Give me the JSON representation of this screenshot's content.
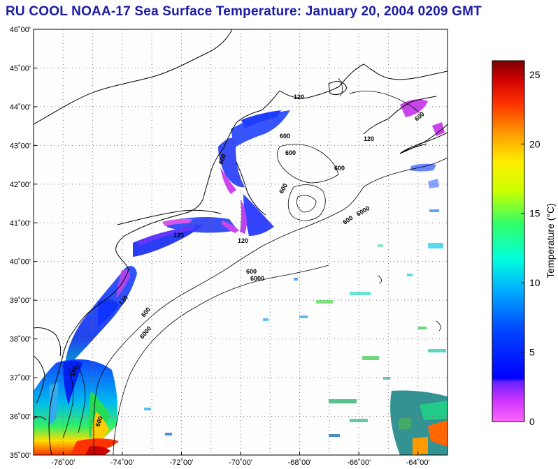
{
  "title": "RU COOL  NOAA-17  Sea Surface Temperature:  January 20, 2004 0209 GMT",
  "map": {
    "lat_labels": [
      "46˚00'",
      "45˚00'",
      "44˚00'",
      "43˚00'",
      "42˚00'",
      "41˚00'",
      "40˚00'",
      "39˚00'",
      "38˚00'",
      "37˚00'",
      "36˚00'",
      "35˚00'"
    ],
    "lon_labels": [
      "-76˚00'",
      "-74˚00'",
      "-72˚00'",
      "-70˚00'",
      "-68˚00'",
      "-66˚00'",
      "-64˚00'"
    ],
    "lat_range": [
      35,
      46
    ],
    "lon_range": [
      -77,
      -63
    ],
    "contour_labels": [
      "600",
      "600",
      "6000",
      "120",
      "600",
      "600",
      "600",
      "600",
      "6000",
      "120",
      "600",
      "600",
      "6000",
      "120",
      "600",
      "120",
      "600",
      "120",
      "120"
    ]
  },
  "colorbar": {
    "label": "Temperature (°C)",
    "ticks": [
      "0",
      "5",
      "10",
      "15",
      "20",
      "25"
    ],
    "tick_values": [
      0,
      5,
      10,
      15,
      20,
      25
    ],
    "range": [
      0,
      26
    ]
  },
  "colors": {
    "title": "#1a1aa6"
  }
}
